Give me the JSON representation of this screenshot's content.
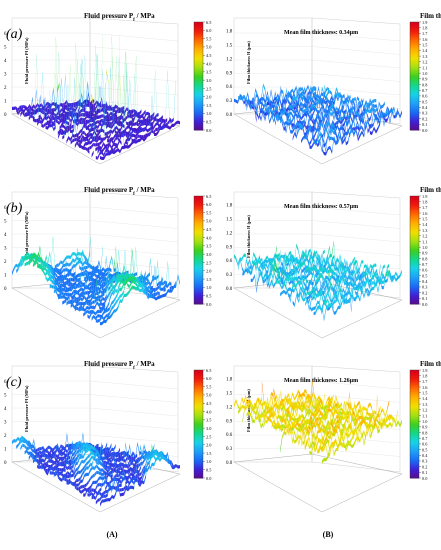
{
  "column_labels": [
    "(A)",
    "(B)"
  ],
  "pressure_colorbar": {
    "title": "Fluid pressure P",
    "title_subscript": "f",
    "title_unit": " / MPa",
    "ticks": [
      "0.0",
      "0.5",
      "1.0",
      "1.5",
      "2.0",
      "2.5",
      "3.0",
      "3.5",
      "4.0",
      "4.5",
      "5.0",
      "5.5",
      "6.0",
      "6.5"
    ],
    "colors": [
      "#5a0a8c",
      "#3f20d8",
      "#1a6cf5",
      "#1ea0f8",
      "#18d2e8",
      "#14d78a",
      "#3ccf1c",
      "#a6e012",
      "#f0e000",
      "#ffb000",
      "#ff6a00",
      "#f11c0c",
      "#d8001a"
    ]
  },
  "thickness_colorbar": {
    "title": "Film thickness ",
    "title_symbol": "H",
    "title_unit": " / μm",
    "ticks": [
      "0.0",
      "0.1",
      "0.2",
      "0.3",
      "0.4",
      "0.5",
      "0.6",
      "0.7",
      "0.8",
      "0.9",
      "1.0",
      "1.1",
      "1.2",
      "1.3",
      "1.4",
      "1.5",
      "1.6",
      "1.7",
      "1.8",
      "1.9"
    ],
    "colors": [
      "#5a0a8c",
      "#3f20d8",
      "#1a6cf5",
      "#1ea0f8",
      "#18d2e8",
      "#14d78a",
      "#3ccf1c",
      "#a6e012",
      "#f0e000",
      "#ffb000",
      "#ff6a00",
      "#f11c0c",
      "#d8001a"
    ]
  },
  "chart_data": [
    {
      "panel": "(a)",
      "type": "surface",
      "quantity": "fluid pressure",
      "zlabel": "Fluid pressure Pf (MPa)",
      "zlim": [
        0,
        6.5
      ],
      "z_ticks": [
        "0",
        "1",
        "2",
        "3",
        "4",
        "5",
        "6"
      ],
      "peak": 6.0,
      "baseline": 0.3,
      "roughness": "spiky"
    },
    {
      "panel": "(a)",
      "type": "surface",
      "quantity": "film thickness",
      "title": "Mean film thickness: 0.34μm",
      "zlabel": "Film thickness H (μm)",
      "zlim": [
        0,
        1.9
      ],
      "z_ticks": [
        "0.0",
        "0.3",
        "0.6",
        "0.9",
        "1.2",
        "1.5",
        "1.8"
      ],
      "mean": 0.34
    },
    {
      "panel": "(b)",
      "type": "surface",
      "quantity": "fluid pressure",
      "zlabel": "Fluid pressure Pf (MPa)",
      "zlim": [
        0,
        6.5
      ],
      "z_ticks": [
        "0",
        "1",
        "2",
        "3",
        "4",
        "5",
        "6"
      ],
      "peak": 3.5,
      "baseline": 1.0,
      "roughness": "moderate"
    },
    {
      "panel": "(b)",
      "type": "surface",
      "quantity": "film thickness",
      "title": "Mean film thickness: 0.57μm",
      "zlabel": "Film thickness H (μm)",
      "zlim": [
        0,
        1.9
      ],
      "z_ticks": [
        "0.0",
        "0.3",
        "0.6",
        "0.9",
        "1.2",
        "1.5",
        "1.8"
      ],
      "mean": 0.57
    },
    {
      "panel": "(c)",
      "type": "surface",
      "quantity": "fluid pressure",
      "zlabel": "Fluid pressure Pf (MPa)",
      "zlim": [
        0,
        6.5
      ],
      "z_ticks": [
        "0",
        "1",
        "2",
        "3",
        "4",
        "5",
        "6"
      ],
      "peak": 2.8,
      "baseline": 0.6,
      "roughness": "smooth"
    },
    {
      "panel": "(c)",
      "type": "surface",
      "quantity": "film thickness",
      "title": "Mean film thickness: 1.26μm",
      "zlabel": "Film thickness H (μm)",
      "zlim": [
        0,
        1.9
      ],
      "z_ticks": [
        "0.0",
        "0.3",
        "0.6",
        "0.9",
        "1.2",
        "1.5",
        "1.8"
      ],
      "mean": 1.26
    }
  ]
}
